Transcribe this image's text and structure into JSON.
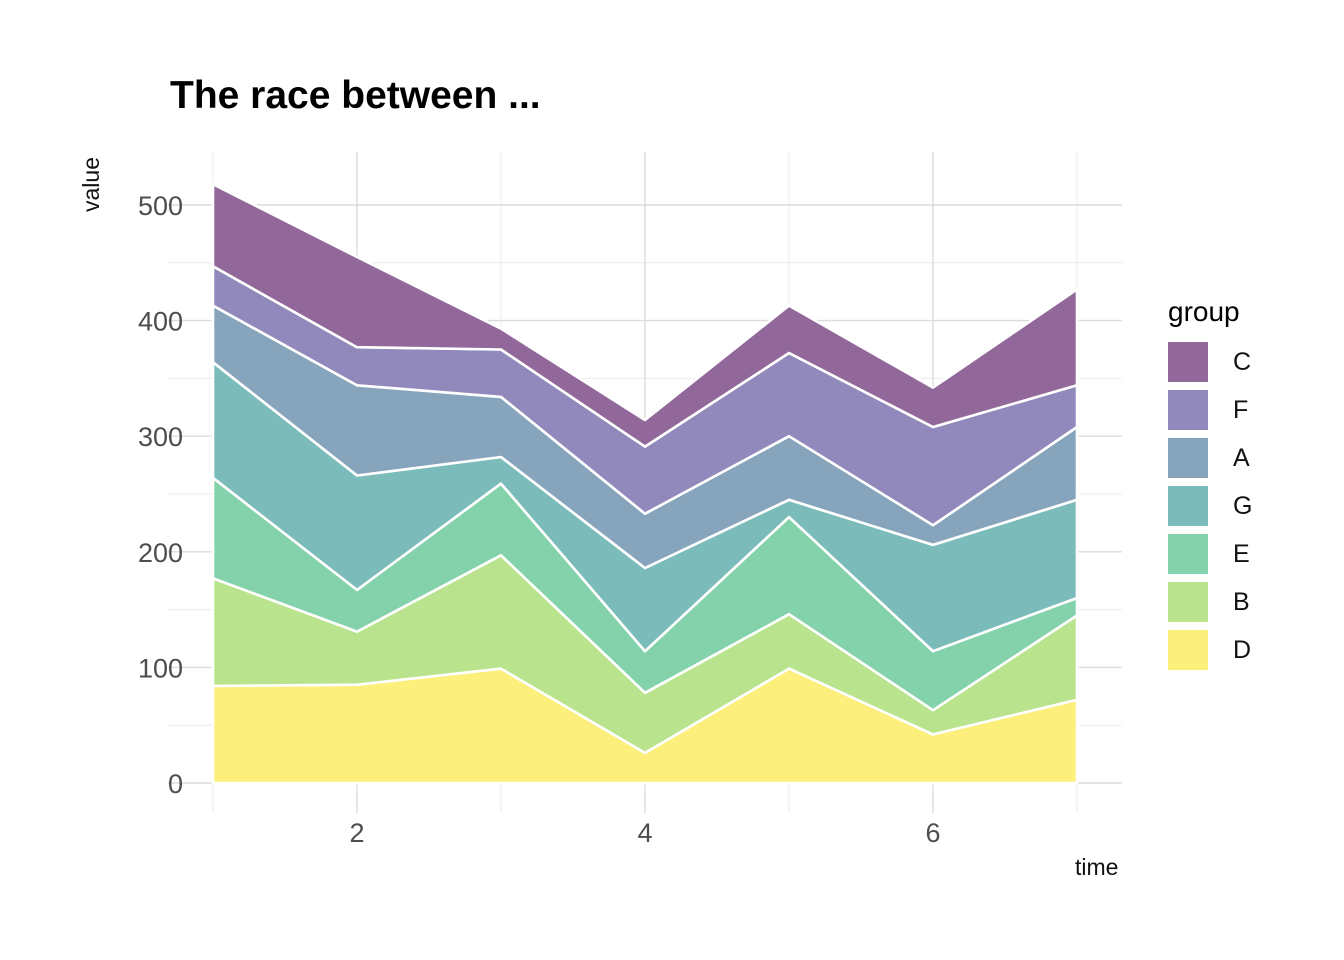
{
  "title": "The race between ...",
  "axes": {
    "x": {
      "label": "time",
      "tick_labels": [
        "2",
        "4",
        "6"
      ],
      "tick_values": [
        2,
        4,
        6
      ],
      "minor_values": [
        1,
        3,
        5,
        7
      ],
      "range": [
        1,
        7
      ]
    },
    "y": {
      "label": "value",
      "tick_labels": [
        "0",
        "100",
        "200",
        "300",
        "400",
        "500"
      ],
      "tick_values": [
        0,
        100,
        200,
        300,
        400,
        500
      ],
      "minor_values": [
        50,
        150,
        250,
        350,
        450
      ],
      "range": [
        0,
        545
      ]
    }
  },
  "legend": {
    "title": "group",
    "items": [
      {
        "label": "C",
        "color": "#92689A"
      },
      {
        "label": "F",
        "color": "#9189BB"
      },
      {
        "label": "A",
        "color": "#86A4BC"
      },
      {
        "label": "G",
        "color": "#7BBCBB"
      },
      {
        "label": "E",
        "color": "#84D2AC"
      },
      {
        "label": "B",
        "color": "#B9E38C"
      },
      {
        "label": "D",
        "color": "#FCEF7C"
      }
    ]
  },
  "chart_data": {
    "type": "area",
    "stacked": true,
    "title": "The race between ...",
    "xlabel": "time",
    "ylabel": "value",
    "x": [
      1,
      2,
      3,
      4,
      5,
      6,
      7
    ],
    "series": [
      {
        "name": "D",
        "color": "#FCEF7C",
        "values": [
          84,
          85,
          99,
          26,
          99,
          42,
          72
        ]
      },
      {
        "name": "B",
        "color": "#B9E38C",
        "values": [
          93,
          46,
          98,
          52,
          47,
          21,
          73
        ]
      },
      {
        "name": "E",
        "color": "#84D2AC",
        "values": [
          87,
          36,
          62,
          36,
          84,
          51,
          15
        ]
      },
      {
        "name": "G",
        "color": "#7BBCBB",
        "values": [
          100,
          99,
          23,
          72,
          15,
          92,
          85
        ]
      },
      {
        "name": "A",
        "color": "#86A4BC",
        "values": [
          49,
          78,
          52,
          47,
          55,
          17,
          63
        ]
      },
      {
        "name": "F",
        "color": "#9189BB",
        "values": [
          34,
          33,
          41,
          58,
          72,
          85,
          36
        ]
      },
      {
        "name": "C",
        "color": "#92689A",
        "values": [
          71,
          78,
          18,
          23,
          41,
          34,
          83
        ]
      }
    ],
    "stack_totals": [
      518,
      455,
      393,
      314,
      413,
      342,
      427
    ],
    "series_order_bottom_to_top": [
      "D",
      "B",
      "E",
      "G",
      "A",
      "F",
      "C"
    ],
    "legend_position": "right",
    "grid": {
      "major_color": "#DCDCDC",
      "minor_color": "#EBEBEB",
      "area_outline_color": "#FFFFFF"
    },
    "tick_label_color": "#4D4D4D",
    "xlim": [
      1,
      7
    ],
    "ylim": [
      0,
      545
    ]
  }
}
